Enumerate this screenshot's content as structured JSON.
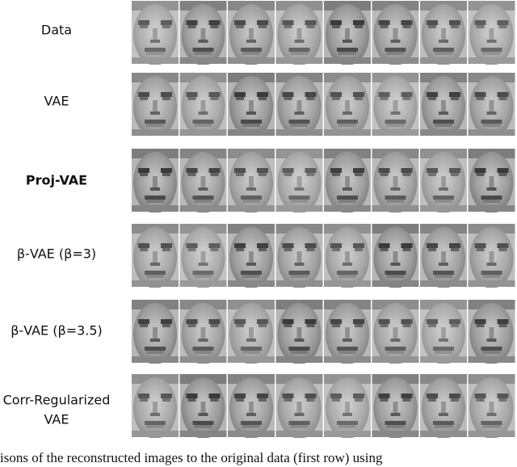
{
  "figure": {
    "rows": [
      {
        "label": [
          "Data"
        ]
      },
      {
        "label": [
          "VAE"
        ]
      },
      {
        "label": [
          "Proj-VAE"
        ]
      },
      {
        "label": [
          "β-VAE (β=3)"
        ]
      },
      {
        "label": [
          "β-VAE (β=3.5)"
        ]
      },
      {
        "label": [
          "Corr-Regularized",
          "VAE"
        ]
      }
    ],
    "caption": "isons of the reconstructed images to the original data (first row) using"
  }
}
